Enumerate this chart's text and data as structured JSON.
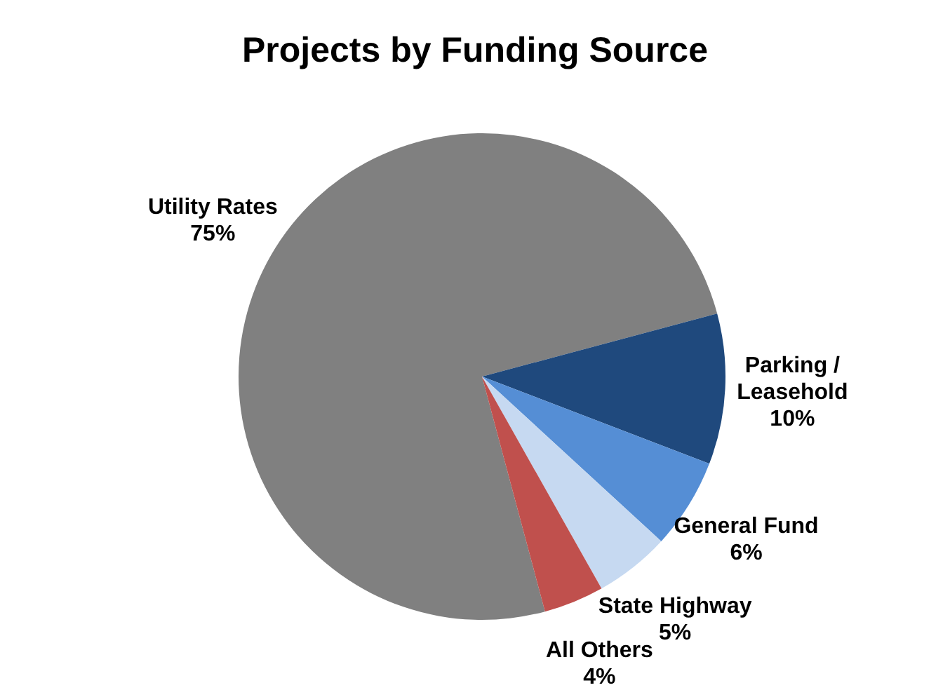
{
  "chart_data": {
    "type": "pie",
    "title": "Projects by Funding Source",
    "categories": [
      "Utility Rates",
      "Parking / Leasehold",
      "General Fund",
      "State Highway",
      "All Others"
    ],
    "values": [
      75,
      10,
      6,
      5,
      4
    ],
    "value_labels": [
      "75%",
      "10%",
      "6%",
      "5%",
      "4%"
    ],
    "colors": [
      "#808080",
      "#1f497d",
      "#558ed5",
      "#c6d9f1",
      "#c0504d"
    ],
    "legend": false
  }
}
